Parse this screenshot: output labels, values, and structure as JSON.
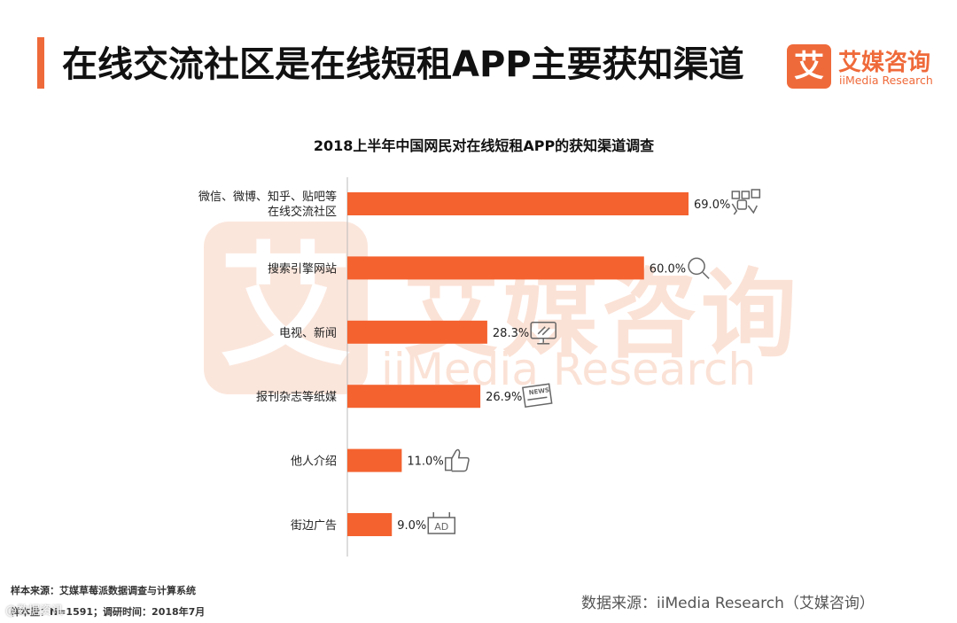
{
  "header": {
    "title": "在线交流社区是在线短租APP主要获知渠道"
  },
  "logo": {
    "glyph": "艾",
    "name_cn": "艾媒咨询",
    "name_en": "iiMedia Research"
  },
  "watermark": {
    "glyph": "艾",
    "name_cn": "艾媒咨询",
    "name_en": "iiMedia Research"
  },
  "footer": {
    "sample_source": "样本来源：艾媒草莓派数据调查与计算系统",
    "sample_size": "样本量：N=1591；调研时间：2018年7月",
    "data_source": "数据来源：iiMedia Research（艾媒咨询）",
    "corner_mark": "@数据资讯"
  },
  "colors": {
    "bar": "#f4622f",
    "accent": "#ef6a3a"
  },
  "chart_data": {
    "type": "bar",
    "orientation": "horizontal",
    "title": "2018上半年中国网民对在线短租APP的获知渠道调查",
    "categories": [
      [
        "微信、微博、知乎、贴吧等",
        "在线交流社区"
      ],
      [
        "搜索引擎网站"
      ],
      [
        "电视、新闻"
      ],
      [
        "报刊杂志等纸媒"
      ],
      [
        "他人介绍"
      ],
      [
        "街边广告"
      ]
    ],
    "values": [
      69.0,
      60.0,
      28.3,
      26.9,
      11.0,
      9.0
    ],
    "value_labels": [
      "69.0%",
      "60.0%",
      "28.3%",
      "26.9%",
      "11.0%",
      "9.0%"
    ],
    "icons": [
      "social-icon",
      "search-icon",
      "tv-icon",
      "newspaper-icon",
      "thumbs-up-icon",
      "ad-sign-icon"
    ],
    "icon_texts": [
      "",
      "",
      "",
      "NEWS",
      "",
      "AD"
    ],
    "xlim": [
      0,
      100
    ],
    "grid": false,
    "legend": "none"
  }
}
